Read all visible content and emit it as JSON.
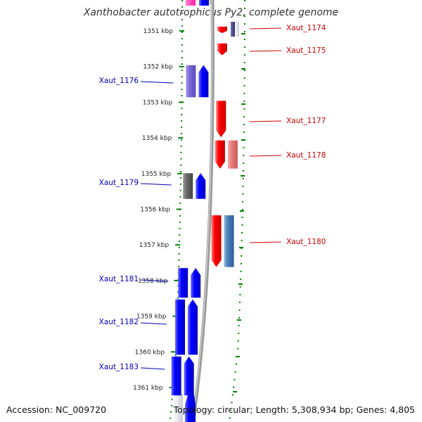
{
  "title": "Xanthobacter autotrophicus Py2, complete genome",
  "footer": {
    "accession": "Accession: NC_009720",
    "summary": "Topology: circular; Length: 5,308,934 bp; Genes: 4,805"
  },
  "colors": {
    "forward_label": "#0000b4",
    "reverse_label": "#cc0000",
    "tick": "#008000",
    "backbone": "#888888"
  },
  "scale": {
    "unit": "kbp",
    "ticks": [
      1351,
      1352,
      1353,
      1354,
      1355,
      1356,
      1357,
      1358,
      1359,
      1360,
      1361
    ]
  },
  "genes": [
    {
      "locus": "Xaut_1174",
      "strand": "reverse",
      "start_kbp": 1350.88,
      "end_kbp": 1351.06
    },
    {
      "locus": "Xaut_1175",
      "strand": "reverse",
      "start_kbp": 1351.35,
      "end_kbp": 1351.68
    },
    {
      "locus": "Xaut_1176",
      "strand": "forward",
      "start_kbp": 1351.96,
      "end_kbp": 1352.86
    },
    {
      "locus": "Xaut_1177",
      "strand": "reverse",
      "start_kbp": 1352.96,
      "end_kbp": 1353.98
    },
    {
      "locus": "Xaut_1178",
      "strand": "reverse",
      "start_kbp": 1354.07,
      "end_kbp": 1354.86
    },
    {
      "locus": "Xaut_1179",
      "strand": "forward",
      "start_kbp": 1354.99,
      "end_kbp": 1355.71
    },
    {
      "locus": "Xaut_1180",
      "strand": "reverse",
      "start_kbp": 1356.17,
      "end_kbp": 1357.62
    },
    {
      "locus": "Xaut_1181",
      "strand": "forward",
      "start_kbp": 1357.65,
      "end_kbp": 1358.48
    },
    {
      "locus": "Xaut_1182",
      "strand": "forward",
      "start_kbp": 1358.53,
      "end_kbp": 1360.08
    },
    {
      "locus": "Xaut_1183",
      "strand": "forward",
      "start_kbp": 1360.13,
      "end_kbp": 1361.22
    }
  ]
}
